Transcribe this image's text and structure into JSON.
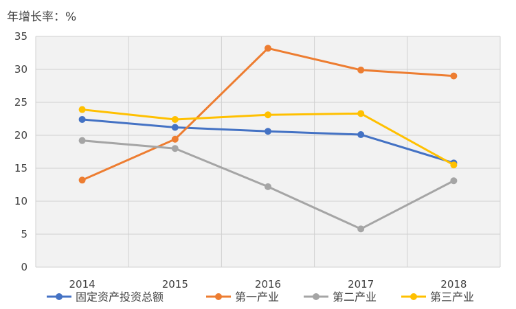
{
  "chart_data": {
    "type": "line",
    "title": "",
    "ylabel": "年增长率：%",
    "xlabel": "",
    "categories": [
      "2014",
      "2015",
      "2016",
      "2017",
      "2018"
    ],
    "ylim": [
      0,
      35
    ],
    "yticks": [
      "0",
      "5",
      "10",
      "15",
      "20",
      "25",
      "30",
      "35"
    ],
    "grid": true,
    "legend_position": "bottom",
    "series": [
      {
        "name": "固定资产投资总额",
        "color": "#4472C4",
        "values": [
          22.4,
          21.2,
          20.6,
          20.1,
          15.8
        ]
      },
      {
        "name": "第一产业",
        "color": "#ED7D31",
        "values": [
          13.2,
          19.4,
          33.2,
          29.9,
          29.0
        ]
      },
      {
        "name": "第二产业",
        "color": "#A5A5A5",
        "values": [
          19.2,
          18.0,
          12.2,
          5.8,
          13.1
        ]
      },
      {
        "name": "第三产业",
        "color": "#FFC000",
        "values": [
          23.9,
          22.4,
          23.1,
          23.3,
          15.5
        ]
      }
    ]
  }
}
